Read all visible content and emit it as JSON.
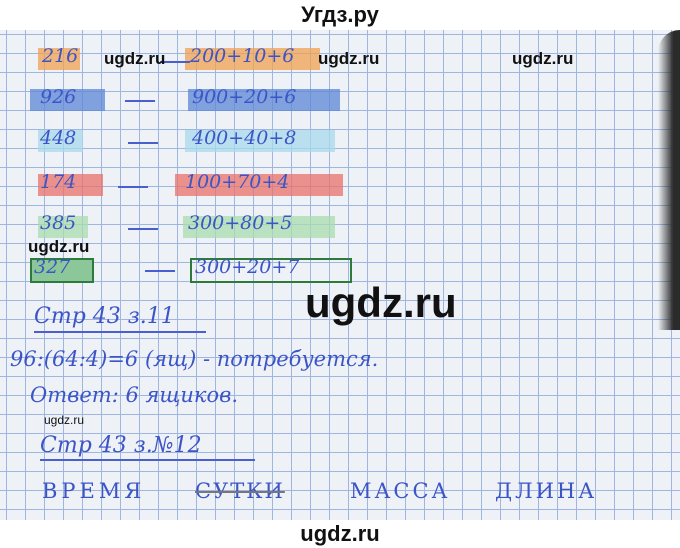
{
  "header": {
    "site_title": "Угдз.ру"
  },
  "watermarks": {
    "small": "ugdz.ru",
    "big": "ugdz.ru"
  },
  "colors": {
    "orange": "#f0a050",
    "blue": "#5b86d6",
    "cyan": "#a8d8ec",
    "red": "#e8706a",
    "green": "#a8dcae",
    "dark_green": "#2d7a3a",
    "ink": "#3c55c6"
  },
  "rows": [
    {
      "number": "216",
      "dash": "—",
      "expansion": "200+10+6",
      "highlight": "orange"
    },
    {
      "number": "926",
      "dash": "—",
      "expansion": "900+20+6",
      "highlight": "blue"
    },
    {
      "number": "448",
      "dash": "—",
      "expansion": "400+40+8",
      "highlight": "cyan"
    },
    {
      "number": "174",
      "dash": "—",
      "expansion": "100+70+4",
      "highlight": "red"
    },
    {
      "number": "385",
      "dash": "—",
      "expansion": "300+80+5",
      "highlight": "green"
    },
    {
      "number": "327",
      "dash": "—",
      "expansion": "300+20+7",
      "highlight": "boxed"
    }
  ],
  "task11": {
    "heading": "Стр 43 з.11",
    "solution": "96:(64:4)=6 (ящ) - потребуется.",
    "answer": "Ответ: 6 ящиков."
  },
  "task12": {
    "heading": "Стр 43 з.№12",
    "words": [
      "ВРЕМЯ",
      "СУТКИ",
      "МАССА",
      "ДЛИНА"
    ]
  },
  "footer": {
    "text": "ugdz.ru"
  }
}
